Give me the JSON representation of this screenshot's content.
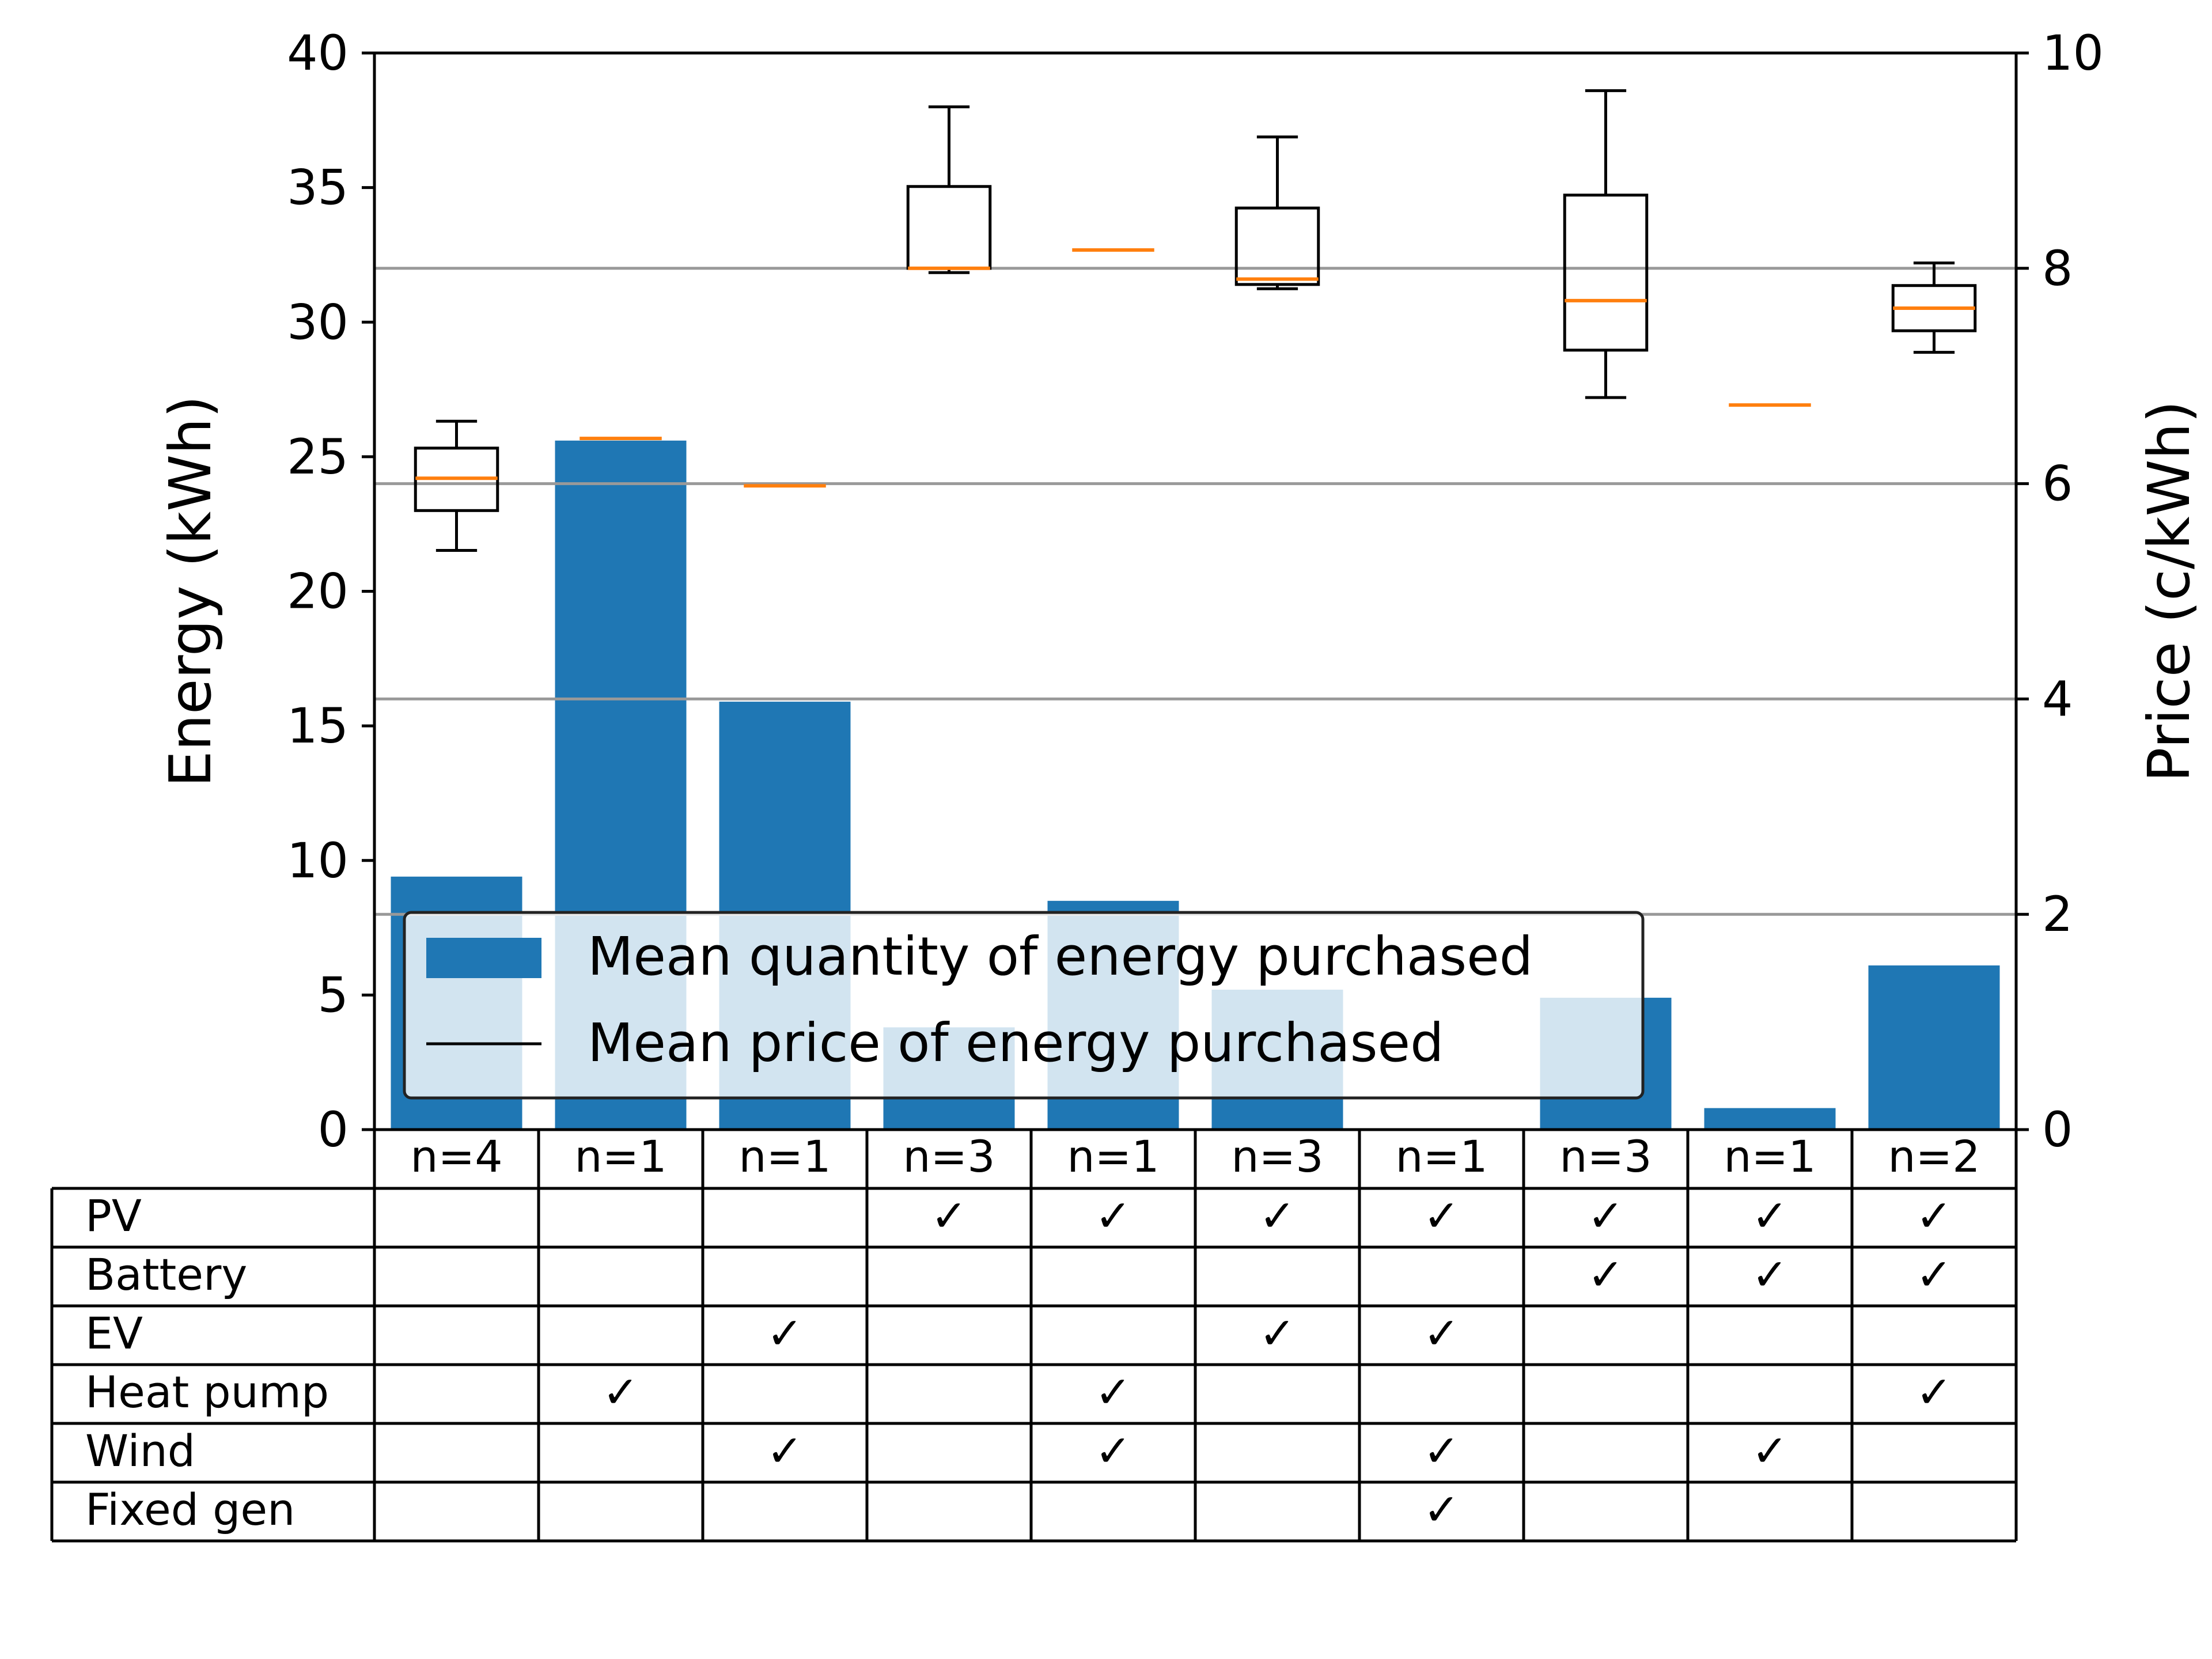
{
  "chart_data": {
    "type": "bar",
    "categories": [
      "n=4",
      "n=1",
      "n=1",
      "n=3",
      "n=1",
      "n=3",
      "n=1",
      "n=3",
      "n=1",
      "n=2"
    ],
    "bar_series": {
      "name": "Mean quantity of energy purchased",
      "values": [
        9.4,
        25.6,
        15.9,
        3.8,
        8.5,
        5.2,
        0.0,
        4.9,
        0.8,
        6.1
      ],
      "color": "#1f77b4"
    },
    "price_series": {
      "name": "Mean price of energy purchased",
      "box_color": "#000000",
      "median_color": "#ff7f0e",
      "boxes": [
        {
          "whislo": 5.38,
          "q1": 5.75,
          "med": 6.05,
          "q3": 6.33,
          "whishi": 6.58
        },
        {
          "whislo": 6.42,
          "q1": 6.42,
          "med": 6.42,
          "q3": 6.42,
          "whishi": 6.42
        },
        {
          "whislo": 5.98,
          "q1": 5.98,
          "med": 5.98,
          "q3": 5.98,
          "whishi": 5.98
        },
        {
          "whislo": 7.96,
          "q1": 8.0,
          "med": 8.0,
          "q3": 8.76,
          "whishi": 9.5
        },
        {
          "whislo": 8.17,
          "q1": 8.17,
          "med": 8.17,
          "q3": 8.17,
          "whishi": 8.17
        },
        {
          "whislo": 7.81,
          "q1": 7.85,
          "med": 7.9,
          "q3": 8.56,
          "whishi": 9.22
        },
        null,
        {
          "whislo": 6.8,
          "q1": 7.24,
          "med": 7.7,
          "q3": 8.68,
          "whishi": 9.65
        },
        {
          "whislo": 6.73,
          "q1": 6.73,
          "med": 6.73,
          "q3": 6.73,
          "whishi": 6.73
        },
        {
          "whislo": 7.22,
          "q1": 7.42,
          "med": 7.63,
          "q3": 7.84,
          "whishi": 8.05
        }
      ]
    },
    "ylabel": "Energy (kWh)",
    "ylim": [
      0,
      40
    ],
    "yticks": [
      "0",
      "5",
      "10",
      "15",
      "20",
      "25",
      "30",
      "35",
      "40"
    ],
    "y2label": "Price (c/kWh)",
    "y2lim": [
      0,
      10
    ],
    "y2ticks": [
      "0",
      "2",
      "4",
      "6",
      "8",
      "10"
    ],
    "y2grid": [
      2,
      4,
      6,
      8
    ],
    "grid_color": "#999999",
    "legend_placement": "lower-left",
    "legend": {
      "bar_label": "Mean quantity of energy purchased",
      "line_label": "Mean price of energy purchased"
    },
    "table": {
      "rows": [
        {
          "label": "PV",
          "checks": [
            false,
            false,
            false,
            true,
            true,
            true,
            true,
            true,
            true,
            true
          ]
        },
        {
          "label": "Battery",
          "checks": [
            false,
            false,
            false,
            false,
            false,
            false,
            false,
            true,
            true,
            true
          ]
        },
        {
          "label": "EV",
          "checks": [
            false,
            false,
            true,
            false,
            false,
            true,
            true,
            false,
            false,
            false
          ]
        },
        {
          "label": "Heat pump",
          "checks": [
            false,
            true,
            false,
            false,
            true,
            false,
            false,
            false,
            false,
            true
          ]
        },
        {
          "label": "Wind",
          "checks": [
            false,
            false,
            true,
            false,
            true,
            false,
            true,
            false,
            true,
            false
          ]
        },
        {
          "label": "Fixed gen",
          "checks": [
            false,
            false,
            false,
            false,
            false,
            false,
            true,
            false,
            false,
            false
          ]
        }
      ],
      "check_mark": "✓"
    }
  }
}
